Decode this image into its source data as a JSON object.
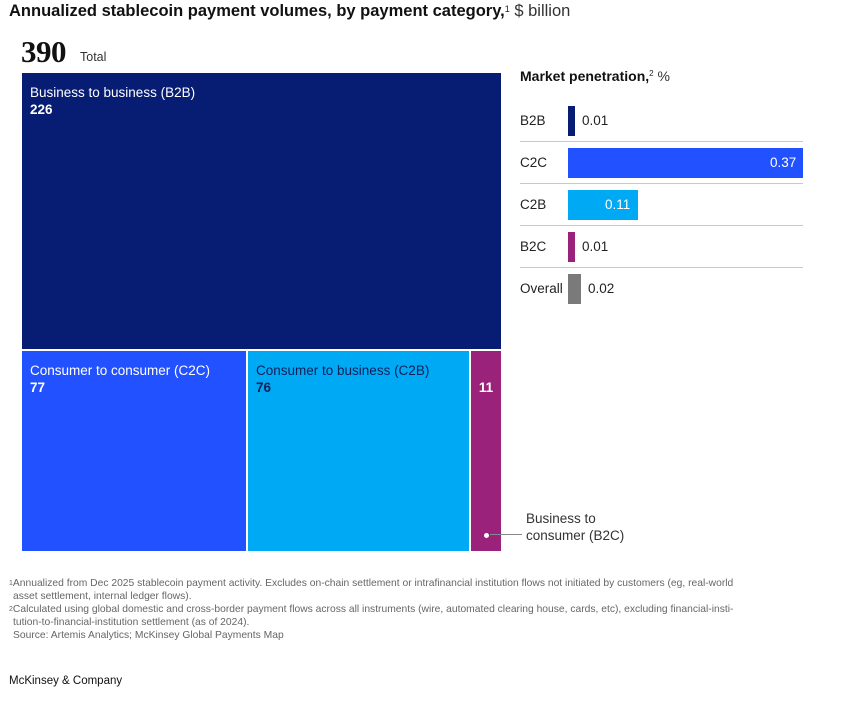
{
  "chart_data": [
    {
      "type": "treemap",
      "title": "Annualized stablecoin payment volumes, by payment category,",
      "title_sup": "1",
      "unit": "$ billion",
      "total": {
        "value": "390",
        "label": "Total"
      },
      "categories": [
        {
          "key": "B2B",
          "name": "Business to business (B2B)",
          "value": 226,
          "color": "#071d74"
        },
        {
          "key": "C2C",
          "name": "Consumer to consumer (C2C)",
          "value": 77,
          "color": "#2251ff"
        },
        {
          "key": "C2B",
          "name": "Consumer to business (C2B)",
          "value": 76,
          "color": "#00a9f4"
        },
        {
          "key": "B2C",
          "name": "Business to\nconsumer (B2C)",
          "value": 11,
          "color": "#9a227a"
        }
      ]
    },
    {
      "type": "bar",
      "orientation": "horizontal",
      "title": "Market penetration,",
      "title_sup": "2",
      "unit": "%",
      "xlim": [
        0,
        0.37
      ],
      "categories": [
        "B2B",
        "C2C",
        "C2B",
        "B2C",
        "Overall"
      ],
      "values": [
        0.01,
        0.37,
        0.11,
        0.01,
        0.02
      ],
      "labels": [
        "0.01",
        "0.37",
        "0.11",
        "0.01",
        "0.02"
      ],
      "colors": [
        "#071d74",
        "#2251ff",
        "#00a9f4",
        "#9a227a",
        "#7a7a7a"
      ]
    }
  ],
  "footnotes": {
    "note1_num": "1",
    "note1_line1": "Annualized from Dec 2025 stablecoin payment activity. Excludes on-chain settlement or intrafinancial institution flows not initiated by customers (eg, real-world",
    "note1_line2": "asset settlement, internal ledger flows).",
    "note2_num": "2",
    "note2_line1": "Calculated using global domestic and cross-border payment flows across all instruments (wire, automated clearing house, cards, etc), excluding financial-insti-",
    "note2_line2": "tution-to-financial-institution settlement (as of 2024).",
    "source": "Source: Artemis Analytics; McKinsey Global Payments Map"
  },
  "brand": "McKinsey & Company"
}
